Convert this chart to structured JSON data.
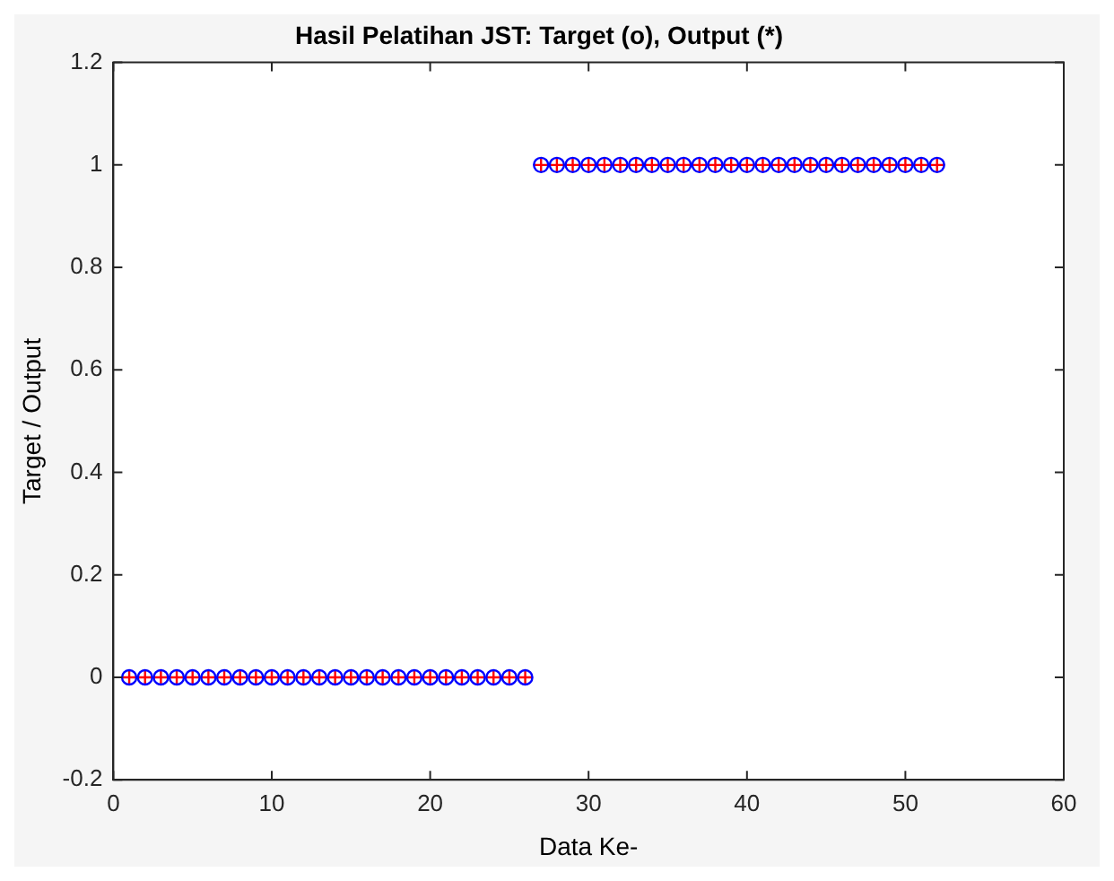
{
  "chart_data": {
    "type": "scatter",
    "title": "Hasil Pelatihan JST: Target (o), Output (*)",
    "xlabel": "Data Ke-",
    "ylabel": "Target / Output",
    "x": [
      1,
      2,
      3,
      4,
      5,
      6,
      7,
      8,
      9,
      10,
      11,
      12,
      13,
      14,
      15,
      16,
      17,
      18,
      19,
      20,
      21,
      22,
      23,
      24,
      25,
      26,
      27,
      28,
      29,
      30,
      31,
      32,
      33,
      34,
      35,
      36,
      37,
      38,
      39,
      40,
      41,
      42,
      43,
      44,
      45,
      46,
      47,
      48,
      49,
      50,
      51,
      52
    ],
    "series": [
      {
        "color": "#0000ff",
        "marker": "circle",
        "values": [
          0,
          0,
          0,
          0,
          0,
          0,
          0,
          0,
          0,
          0,
          0,
          0,
          0,
          0,
          0,
          0,
          0,
          0,
          0,
          0,
          0,
          0,
          0,
          0,
          0,
          0,
          1,
          1,
          1,
          1,
          1,
          1,
          1,
          1,
          1,
          1,
          1,
          1,
          1,
          1,
          1,
          1,
          1,
          1,
          1,
          1,
          1,
          1,
          1,
          1,
          1,
          1
        ]
      },
      {
        "color": "#ff0000",
        "marker": "cross",
        "values": [
          0,
          0,
          0,
          0,
          0,
          0,
          0,
          0,
          0,
          0,
          0,
          0,
          0,
          0,
          0,
          0,
          0,
          0,
          0,
          0,
          0,
          0,
          0,
          0,
          0,
          0,
          1,
          1,
          1,
          1,
          1,
          1,
          1,
          1,
          1,
          1,
          1,
          1,
          1,
          1,
          1,
          1,
          1,
          1,
          1,
          1,
          1,
          1,
          1,
          1,
          1,
          1
        ]
      }
    ],
    "xlim": [
      0,
      60
    ],
    "xticks": [
      0,
      10,
      20,
      30,
      40,
      50,
      60
    ],
    "ylim": [
      -0.2,
      1.2
    ],
    "yticks": [
      -0.2,
      0,
      0.2,
      0.4,
      0.6,
      0.8,
      1,
      1.2
    ],
    "grid": false,
    "legend": false
  }
}
